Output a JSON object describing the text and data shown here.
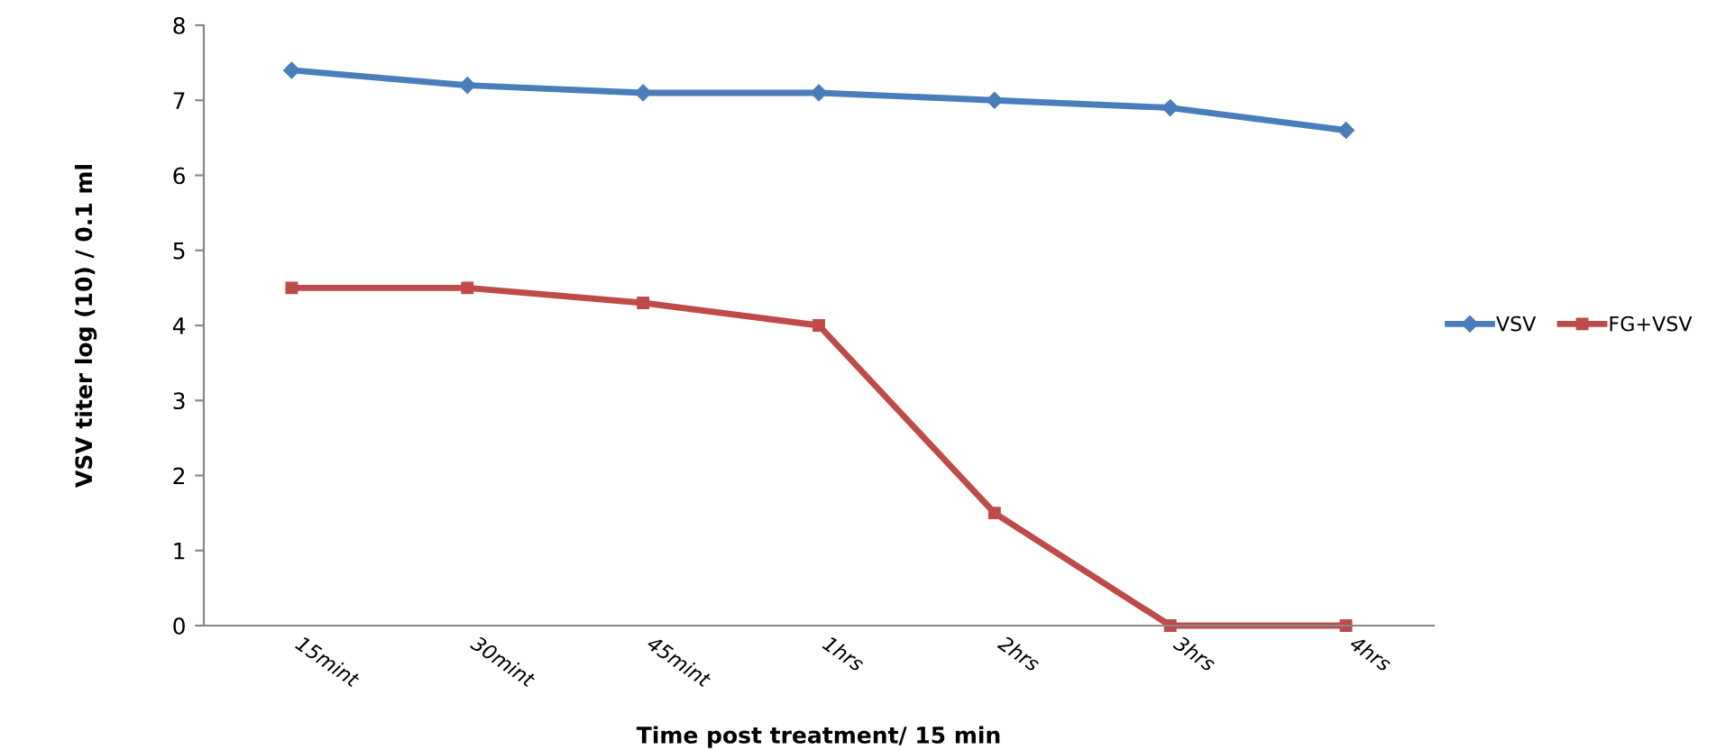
{
  "chart_data": {
    "type": "line",
    "xlabel": "Time post treatment/ 15 min",
    "ylabel": "VSV titer log (10) / 0.1 ml",
    "categories": [
      "15mint",
      "30mint",
      "45mint",
      "1hrs",
      "2hrs",
      "3hrs",
      "4hrs"
    ],
    "series": [
      {
        "name": "VSV",
        "color": "#4a7ebb",
        "marker": "diamond",
        "values": [
          7.4,
          7.2,
          7.1,
          7.1,
          7.0,
          6.9,
          6.6
        ]
      },
      {
        "name": "FG+VSV",
        "color": "#be4b48",
        "marker": "square",
        "values": [
          4.5,
          4.5,
          4.3,
          4.0,
          1.5,
          0,
          0
        ]
      }
    ],
    "ylim": [
      0,
      8
    ],
    "yticks": [
      0,
      1,
      2,
      3,
      4,
      5,
      6,
      7,
      8
    ],
    "grid": false,
    "legend": "right",
    "line_style": "solid"
  }
}
